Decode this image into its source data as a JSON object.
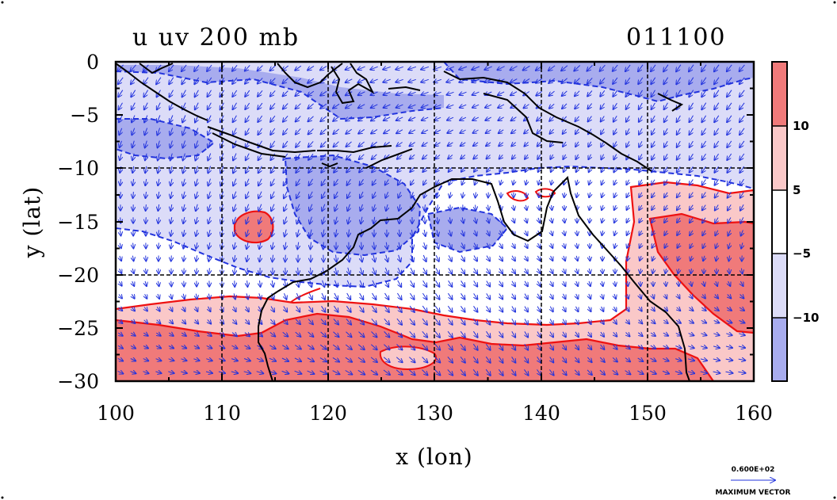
{
  "plot": {
    "title": "u uv 200 mb",
    "timestamp": "011100",
    "xlabel": "x (lon)",
    "ylabel": "y (lat)"
  },
  "chart_data": {
    "type": "heatmap",
    "title": "u uv 200 mb",
    "xlabel": "x (lon)",
    "ylabel": "y (lat)",
    "xlim": [
      100,
      160
    ],
    "ylim": [
      -30,
      0
    ],
    "x_ticks": [
      "100",
      "110",
      "120",
      "130",
      "140",
      "150",
      "160"
    ],
    "y_ticks": [
      "0",
      "−5",
      "−10",
      "−15",
      "−20",
      "−25",
      "−30"
    ],
    "grid": true,
    "contour_levels": [
      -10,
      -5,
      5,
      10
    ],
    "colorbar": {
      "labels": [
        "10",
        "5",
        "−5",
        "−10"
      ],
      "colors": [
        "#f07a7a",
        "#fac8c8",
        "#ffffff",
        "#dcdcf8",
        "#a8acee"
      ]
    },
    "vector_legend": {
      "max_label": "0.600E+02",
      "caption": "MAXIMUM VECTOR"
    }
  },
  "colors": {
    "strong_positive": "#f07a7a",
    "weak_positive": "#fac8c8",
    "neutral": "#ffffff",
    "weak_negative": "#dcdcf8",
    "strong_negative": "#a8acee",
    "positive_contour": "#ee1111",
    "negative_contour": "#2233dd",
    "vectors": "#2233dd",
    "coastline": "#000000"
  }
}
